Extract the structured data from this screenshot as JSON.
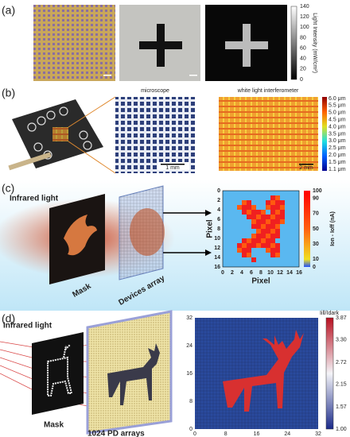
{
  "panels": [
    "(a)",
    "(b)",
    "(c)",
    "(d)"
  ],
  "a": {
    "colorbar_label": "Light Intensity (mW/cm²)",
    "colorbar_ticks": [
      "0",
      "20",
      "40",
      "60",
      "80",
      "100",
      "120",
      "140"
    ]
  },
  "b": {
    "microscope_title": "microscope",
    "microscope_scale": "1 mm",
    "interferometer_title": "white light interferometer",
    "interferometer_scale": "2 mm",
    "colorbar_ticks": [
      "6.0 μm",
      "5.5 μm",
      "5.0 μm",
      "4.5 μm",
      "4.0 μm",
      "3.5 μm",
      "3.0 μm",
      "2.5 μm",
      "2.0 μm",
      "1.5 μm",
      "1.1 μm"
    ]
  },
  "c": {
    "light_label": "Infrared light",
    "mask_label": "Mask",
    "array_label": "Devices array",
    "x_label": "Pixel",
    "y_label": "Pixel",
    "x_ticks": [
      "0",
      "2",
      "4",
      "6",
      "8",
      "10",
      "12",
      "14",
      "16"
    ],
    "y_ticks": [
      "0",
      "2",
      "4",
      "6",
      "8",
      "10",
      "12",
      "14",
      "16"
    ],
    "colorbar_label": "Ion - Ioff (nA)",
    "colorbar_ticks": [
      "100",
      "90",
      "70",
      "50",
      "30",
      "10",
      "0"
    ]
  },
  "d": {
    "light_label": "Infrared light",
    "mask_label": "Mask",
    "array_label": "1024 PD arrays",
    "x_ticks": [
      "0",
      "8",
      "16",
      "24",
      "32"
    ],
    "y_ticks": [
      "32",
      "24",
      "16",
      "8",
      "0"
    ],
    "colorbar_label": "Iill/Idark",
    "colorbar_ticks": [
      "3.87",
      "3.30",
      "2.72",
      "2.15",
      "1.57",
      "1.00"
    ]
  }
}
